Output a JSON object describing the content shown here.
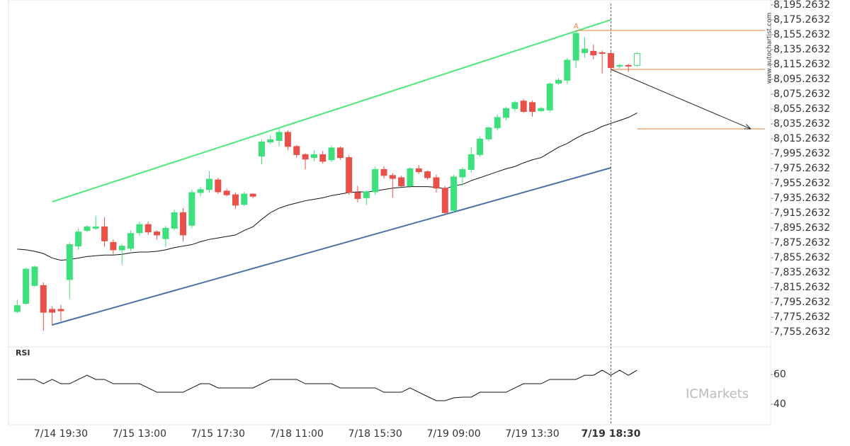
{
  "chart_data": {
    "type": "candlestick",
    "categories": [
      null,
      null,
      null,
      null,
      null,
      "7/14 19:30",
      null,
      null,
      null,
      null,
      null,
      null,
      null,
      null,
      "7/15 13:00",
      null,
      null,
      null,
      null,
      null,
      null,
      null,
      null,
      "7/15 17:30",
      null,
      null,
      null,
      null,
      null,
      null,
      null,
      null,
      "7/18 11:00",
      null,
      null,
      null,
      null,
      null,
      null,
      null,
      null,
      "7/18 15:30",
      null,
      null,
      null,
      null,
      null,
      null,
      null,
      null,
      "7/19 09:00",
      null,
      null,
      null,
      null,
      null,
      null,
      null,
      null,
      "7/19 13:30",
      null,
      null,
      null,
      null,
      null,
      null,
      null,
      null,
      "7/19 18:30",
      null,
      null,
      null
    ],
    "open": [
      7783,
      7794,
      7818,
      7818,
      7786,
      7786,
      7826,
      7871,
      7892,
      7895,
      7897,
      7876,
      7866,
      7868,
      7889,
      7900,
      7890,
      7881,
      7895,
      7916,
      7899,
      7943,
      7947,
      7960,
      7945,
      7940,
      7927,
      7941,
      7992,
      8011,
      8013,
      8024,
      8005,
      7994,
      7990,
      7994,
      7987,
      8003,
      7990,
      7943,
      7936,
      7944,
      7974,
      7966,
      7963,
      7952,
      7975,
      7971,
      7963,
      7949,
      7919,
      7964,
      7974,
      7994,
      8015,
      8030,
      8044,
      8056,
      8066,
      8064,
      8053,
      8054,
      8090,
      8094,
      8121,
      8131,
      8133,
      8131,
      8130,
      8113,
      8114,
      8114
    ],
    "high": [
      7799,
      7842,
      7845,
      7822,
      7790,
      7792,
      7876,
      7895,
      7899,
      7912,
      7910,
      7880,
      7874,
      7892,
      7904,
      7904,
      7892,
      7898,
      7920,
      7922,
      7947,
      7951,
      7972,
      7963,
      7948,
      7943,
      7944,
      7942,
      8014,
      8020,
      8029,
      8027,
      8007,
      7996,
      8000,
      7999,
      8006,
      8005,
      7993,
      7952,
      7946,
      7978,
      7978,
      7969,
      7966,
      7977,
      7980,
      7973,
      7967,
      7952,
      7967,
      7977,
      8004,
      8018,
      8032,
      8048,
      8058,
      8066,
      8069,
      8067,
      8058,
      8091,
      8097,
      8124,
      8160,
      8152,
      8142,
      8134,
      8133,
      8116,
      8116,
      8132
    ],
    "low": [
      7781,
      7792,
      7816,
      7757,
      7764,
      7770,
      7800,
      7866,
      7890,
      7893,
      7870,
      7860,
      7846,
      7864,
      7885,
      7886,
      7880,
      7870,
      7892,
      7877,
      7895,
      7938,
      7943,
      7941,
      7938,
      7921,
      7925,
      7935,
      7981,
      8008,
      8005,
      8000,
      7990,
      7974,
      7985,
      7982,
      7984,
      7987,
      7940,
      7930,
      7926,
      7940,
      7962,
      7936,
      7949,
      7949,
      7968,
      7960,
      7943,
      7914,
      7916,
      7952,
      7970,
      7991,
      8012,
      8027,
      8040,
      8052,
      8050,
      8045,
      8051,
      8051,
      8088,
      8089,
      8110,
      8124,
      8122,
      8103,
      8106,
      8110,
      8105,
      8112
    ],
    "close": [
      7791,
      7840,
      7843,
      7782,
      7782,
      7784,
      7873,
      7890,
      7897,
      7897,
      7878,
      7866,
      7871,
      7888,
      7900,
      7890,
      7886,
      7895,
      7916,
      7886,
      7943,
      7947,
      7961,
      7944,
      7940,
      7926,
      7941,
      7938,
      8011,
      8014,
      8024,
      8005,
      7994,
      7988,
      7994,
      7985,
      8003,
      7990,
      7943,
      7935,
      7944,
      7974,
      7966,
      7962,
      7952,
      7975,
      7971,
      7963,
      7949,
      7916,
      7964,
      7974,
      7994,
      8015,
      8030,
      8044,
      8056,
      8064,
      8052,
      8052,
      8056,
      8089,
      8094,
      8121,
      8157,
      8136,
      8128,
      8130,
      8111,
      8114,
      8113,
      8130
    ],
    "up_color": "#3de07c",
    "down_color": "#e8504a",
    "hollow_last": true,
    "ma": {
      "color": "#111111",
      "values": [
        7867,
        7866,
        7864,
        7861,
        7855,
        7852,
        7853,
        7855,
        7857,
        7858,
        7859,
        7859,
        7860,
        7862,
        7863,
        7863,
        7864,
        7866,
        7869,
        7871,
        7873,
        7877,
        7880,
        7882,
        7884,
        7886,
        7892,
        7897,
        7907,
        7916,
        7922,
        7926,
        7929,
        7932,
        7934,
        7936,
        7939,
        7941,
        7943,
        7944,
        7944,
        7945,
        7947,
        7949,
        7950,
        7951,
        7951,
        7951,
        7950,
        7948,
        7952,
        7954,
        7959,
        7963,
        7967,
        7971,
        7975,
        7978,
        7983,
        7987,
        7990,
        7997,
        8004,
        8009,
        8016,
        8022,
        8026,
        8032,
        8036,
        8040,
        8044,
        8050
      ]
    },
    "channel": [
      {
        "color": "#4de87a",
        "points": [
          [
            4,
            7930.6
          ],
          [
            68,
            8175.3
          ]
        ]
      },
      {
        "color": "#4a72a8",
        "points": [
          [
            4,
            7765
          ],
          [
            68,
            7976.3
          ]
        ]
      }
    ],
    "levels": [
      {
        "from": 64,
        "value": 8161
      },
      {
        "from": 68,
        "value": 8108.6
      },
      {
        "from": 71,
        "value": 8028.7
      }
    ],
    "level_color": "#e8803a",
    "arrow": {
      "from": [
        68,
        8108.6
      ],
      "to": [
        84,
        8028.7
      ]
    },
    "point_label": {
      "text": "A",
      "index": 64,
      "value": 8166.7
    },
    "highlight_category": 68,
    "xlim": [
      -1,
      86.3
    ],
    "ylim": [
      7735.5,
      8201.9
    ],
    "yticks": [
      {
        "value": 8195.2632,
        "label": "8,195.2632"
      },
      {
        "value": 8175.2632,
        "label": "8,175.2632"
      },
      {
        "value": 8155.2632,
        "label": "8,155.2632"
      },
      {
        "value": 8135.2632,
        "label": "8,135.2632"
      },
      {
        "value": 8115.2632,
        "label": "8,115.2632"
      },
      {
        "value": 8095.2632,
        "label": "8,095.2632"
      },
      {
        "value": 8075.2632,
        "label": "8,075.2632"
      },
      {
        "value": 8055.2632,
        "label": "8,055.2632"
      },
      {
        "value": 8035.2632,
        "label": "8,035.2632"
      },
      {
        "value": 8015.2632,
        "label": "8,015.2632"
      },
      {
        "value": 7995.2632,
        "label": "7,995.2632"
      },
      {
        "value": 7975.2632,
        "label": "7,975.2632"
      },
      {
        "value": 7955.2632,
        "label": "7,955.2632"
      },
      {
        "value": 7935.2632,
        "label": "7,935.2632"
      },
      {
        "value": 7915.2632,
        "label": "7,915.2632"
      },
      {
        "value": 7895.2632,
        "label": "7,895.2632"
      },
      {
        "value": 7875.2632,
        "label": "7,875.2632"
      },
      {
        "value": 7855.2632,
        "label": "7,855.2632"
      },
      {
        "value": 7835.2632,
        "label": "7,835.2632"
      },
      {
        "value": 7815.2632,
        "label": "7,815.2632"
      },
      {
        "value": 7795.2632,
        "label": "7,795.2632"
      },
      {
        "value": 7775.2632,
        "label": "7,775.2632"
      },
      {
        "value": 7755.2632,
        "label": "7,755.2632"
      }
    ],
    "rsi": {
      "label": "RSI",
      "color": "#111111",
      "ylim": [
        26.2,
        78.6
      ],
      "yticks": [
        40,
        60
      ],
      "values": [
        56.7,
        56.7,
        56.7,
        53.8,
        56.7,
        53.8,
        53.8,
        56.7,
        59.5,
        56.7,
        56.7,
        53.8,
        53.8,
        53.8,
        53.8,
        51,
        48.1,
        48.1,
        48.1,
        48.1,
        51,
        53.8,
        53.8,
        51,
        51,
        51,
        51,
        51,
        53.8,
        56.7,
        56.7,
        56.7,
        56.7,
        53.8,
        53.8,
        53.8,
        53.8,
        51,
        51,
        51,
        51,
        51,
        48.1,
        48.1,
        48.1,
        51,
        48.1,
        45.2,
        42.4,
        42.4,
        44.3,
        44.8,
        44.8,
        48.1,
        48.1,
        48.1,
        48.1,
        51,
        53.8,
        53.8,
        53.8,
        56.7,
        56.7,
        56.7,
        56.7,
        59.5,
        59.5,
        62.9,
        59.5,
        62.9,
        59.5,
        62.9
      ]
    },
    "watermark": "www.autochartist.com",
    "brand": "ICMarkets"
  }
}
